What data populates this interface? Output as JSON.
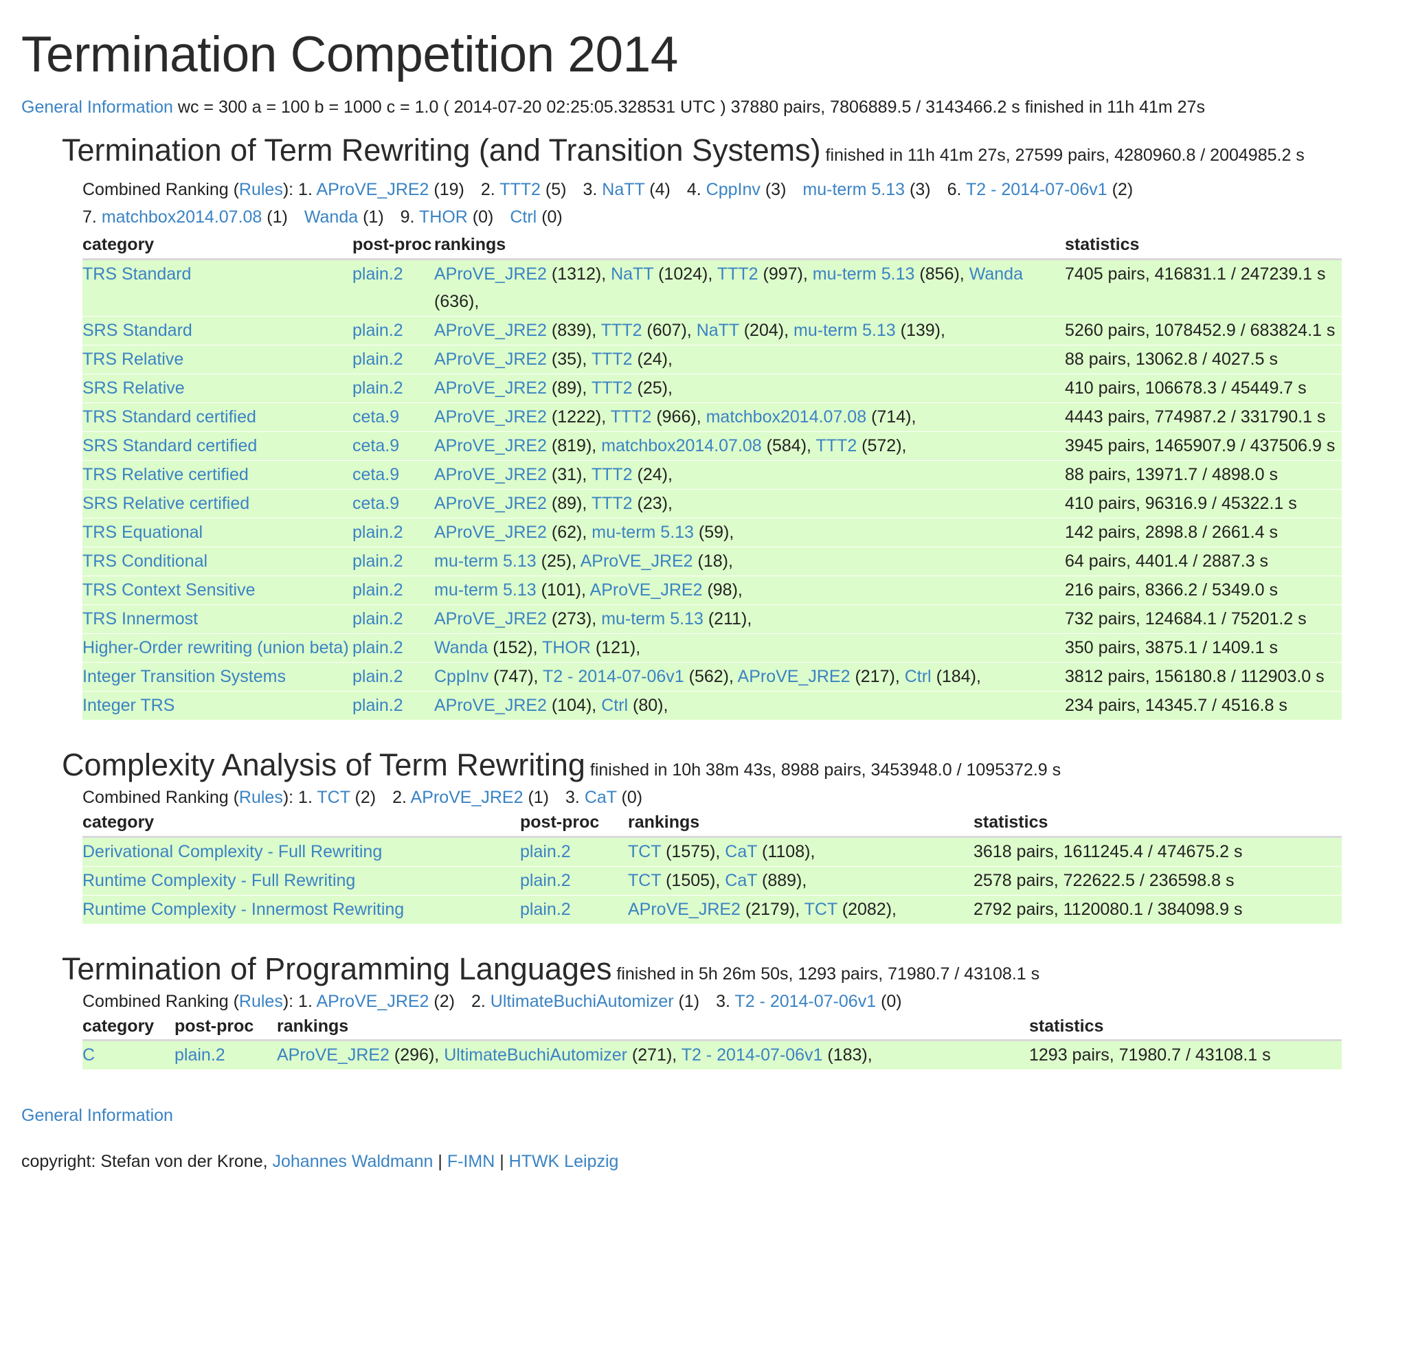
{
  "title": "Termination Competition 2014",
  "summary": {
    "link": "General Information",
    "text": " wc = 300 a = 100 b = 1000 c = 1.0 ( 2014-07-20 02:25:05.328531 UTC ) 37880 pairs, 7806889.5 / 3143466.2 s finished in 11h 41m 27s"
  },
  "sections": [
    {
      "title": "Termination of Term Rewriting (and Transition Systems)",
      "meta": " finished in 11h 41m 27s, 27599 pairs, 4280960.8 / 2004985.2 s",
      "ranking_prefix": "Combined Ranking (",
      "rules_label": "Rules",
      "ranking_suffix": "): ",
      "ranking": [
        {
          "place": "1.",
          "name": "AProVE_JRE2",
          "score": "(19)"
        },
        {
          "place": "2.",
          "name": "TTT2",
          "score": "(5)"
        },
        {
          "place": "3.",
          "name": "NaTT",
          "score": "(4)"
        },
        {
          "place": "4.",
          "name": "CppInv",
          "score": "(3)"
        },
        {
          "place": "",
          "name": "mu-term 5.13",
          "score": "(3)"
        },
        {
          "place": "6.",
          "name": "T2 - 2014-07-06v1",
          "score": "(2)"
        },
        {
          "place": "7.",
          "name": "matchbox2014.07.08",
          "score": "(1)"
        },
        {
          "place": "",
          "name": "Wanda",
          "score": "(1)"
        },
        {
          "place": "9.",
          "name": "THOR",
          "score": "(0)"
        },
        {
          "place": "",
          "name": "Ctrl",
          "score": "(0)"
        }
      ],
      "headers": [
        "category",
        "post-proc",
        "rankings",
        "statistics"
      ],
      "rows": [
        {
          "category": "TRS Standard",
          "post": "plain.2",
          "rankings": [
            [
              "AProVE_JRE2",
              "(1312)"
            ],
            [
              "NaTT",
              "(1024)"
            ],
            [
              "TTT2",
              "(997)"
            ],
            [
              "mu-term 5.13",
              "(856)"
            ],
            [
              "Wanda",
              "(636)"
            ]
          ],
          "stats": "7405 pairs, 416831.1 / 247239.1 s"
        },
        {
          "category": "SRS Standard",
          "post": "plain.2",
          "rankings": [
            [
              "AProVE_JRE2",
              "(839)"
            ],
            [
              "TTT2",
              "(607)"
            ],
            [
              "NaTT",
              "(204)"
            ],
            [
              "mu-term 5.13",
              "(139)"
            ]
          ],
          "stats": "5260 pairs, 1078452.9 / 683824.1 s"
        },
        {
          "category": "TRS Relative",
          "post": "plain.2",
          "rankings": [
            [
              "AProVE_JRE2",
              "(35)"
            ],
            [
              "TTT2",
              "(24)"
            ]
          ],
          "stats": "88 pairs, 13062.8 / 4027.5 s"
        },
        {
          "category": "SRS Relative",
          "post": "plain.2",
          "rankings": [
            [
              "AProVE_JRE2",
              "(89)"
            ],
            [
              "TTT2",
              "(25)"
            ]
          ],
          "stats": "410 pairs, 106678.3 / 45449.7 s"
        },
        {
          "category": "TRS Standard certified",
          "post": "ceta.9",
          "rankings": [
            [
              "AProVE_JRE2",
              "(1222)"
            ],
            [
              "TTT2",
              "(966)"
            ],
            [
              "matchbox2014.07.08",
              "(714)"
            ]
          ],
          "stats": "4443 pairs, 774987.2 / 331790.1 s"
        },
        {
          "category": "SRS Standard certified",
          "post": "ceta.9",
          "rankings": [
            [
              "AProVE_JRE2",
              "(819)"
            ],
            [
              "matchbox2014.07.08",
              "(584)"
            ],
            [
              "TTT2",
              "(572)"
            ]
          ],
          "stats": "3945 pairs, 1465907.9 / 437506.9 s"
        },
        {
          "category": "TRS Relative certified",
          "post": "ceta.9",
          "rankings": [
            [
              "AProVE_JRE2",
              "(31)"
            ],
            [
              "TTT2",
              "(24)"
            ]
          ],
          "stats": "88 pairs, 13971.7 / 4898.0 s"
        },
        {
          "category": "SRS Relative certified",
          "post": "ceta.9",
          "rankings": [
            [
              "AProVE_JRE2",
              "(89)"
            ],
            [
              "TTT2",
              "(23)"
            ]
          ],
          "stats": "410 pairs, 96316.9 / 45322.1 s"
        },
        {
          "category": "TRS Equational",
          "post": "plain.2",
          "rankings": [
            [
              "AProVE_JRE2",
              "(62)"
            ],
            [
              "mu-term 5.13",
              "(59)"
            ]
          ],
          "stats": "142 pairs, 2898.8 / 2661.4 s"
        },
        {
          "category": "TRS Conditional",
          "post": "plain.2",
          "rankings": [
            [
              "mu-term 5.13",
              "(25)"
            ],
            [
              "AProVE_JRE2",
              "(18)"
            ]
          ],
          "stats": "64 pairs, 4401.4 / 2887.3 s"
        },
        {
          "category": "TRS Context Sensitive",
          "post": "plain.2",
          "rankings": [
            [
              "mu-term 5.13",
              "(101)"
            ],
            [
              "AProVE_JRE2",
              "(98)"
            ]
          ],
          "stats": "216 pairs, 8366.2 / 5349.0 s"
        },
        {
          "category": "TRS Innermost",
          "post": "plain.2",
          "rankings": [
            [
              "AProVE_JRE2",
              "(273)"
            ],
            [
              "mu-term 5.13",
              "(211)"
            ]
          ],
          "stats": "732 pairs, 124684.1 / 75201.2 s"
        },
        {
          "category": "Higher-Order rewriting (union beta)",
          "post": "plain.2",
          "rankings": [
            [
              "Wanda",
              "(152)"
            ],
            [
              "THOR",
              "(121)"
            ]
          ],
          "stats": "350 pairs, 3875.1 / 1409.1 s"
        },
        {
          "category": "Integer Transition Systems",
          "post": "plain.2",
          "rankings": [
            [
              "CppInv",
              "(747)"
            ],
            [
              "T2 - 2014-07-06v1",
              "(562)"
            ],
            [
              "AProVE_JRE2",
              "(217)"
            ],
            [
              "Ctrl",
              "(184)"
            ]
          ],
          "stats": "3812 pairs, 156180.8 / 112903.0 s"
        },
        {
          "category": "Integer TRS",
          "post": "plain.2",
          "rankings": [
            [
              "AProVE_JRE2",
              "(104)"
            ],
            [
              "Ctrl",
              "(80)"
            ]
          ],
          "stats": "234 pairs, 14345.7 / 4516.8 s"
        }
      ]
    },
    {
      "title": "Complexity Analysis of Term Rewriting",
      "meta": " finished in 10h 38m 43s, 8988 pairs, 3453948.0 / 1095372.9 s",
      "ranking_prefix": "Combined Ranking (",
      "rules_label": "Rules",
      "ranking_suffix": "): ",
      "ranking": [
        {
          "place": "1.",
          "name": "TCT",
          "score": "(2)"
        },
        {
          "place": "2.",
          "name": "AProVE_JRE2",
          "score": "(1)"
        },
        {
          "place": "3.",
          "name": "CaT",
          "score": "(0)"
        }
      ],
      "headers": [
        "category",
        "post-proc",
        "rankings",
        "statistics"
      ],
      "rows": [
        {
          "category": "Derivational Complexity - Full Rewriting",
          "post": "plain.2",
          "rankings": [
            [
              "TCT",
              "(1575)"
            ],
            [
              "CaT",
              "(1108)"
            ]
          ],
          "stats": "3618 pairs, 1611245.4 / 474675.2 s"
        },
        {
          "category": "Runtime Complexity - Full Rewriting",
          "post": "plain.2",
          "rankings": [
            [
              "TCT",
              "(1505)"
            ],
            [
              "CaT",
              "(889)"
            ]
          ],
          "stats": "2578 pairs, 722622.5 / 236598.8 s"
        },
        {
          "category": "Runtime Complexity - Innermost Rewriting",
          "post": "plain.2",
          "rankings": [
            [
              "AProVE_JRE2",
              "(2179)"
            ],
            [
              "TCT",
              "(2082)"
            ]
          ],
          "stats": "2792 pairs, 1120080.1 / 384098.9 s"
        }
      ]
    },
    {
      "title": "Termination of Programming Languages",
      "meta": " finished in 5h 26m 50s, 1293 pairs, 71980.7 / 43108.1 s",
      "ranking_prefix": "Combined Ranking (",
      "rules_label": "Rules",
      "ranking_suffix": "): ",
      "ranking": [
        {
          "place": "1.",
          "name": "AProVE_JRE2",
          "score": "(2)"
        },
        {
          "place": "2.",
          "name": "UltimateBuchiAutomizer",
          "score": "(1)"
        },
        {
          "place": "3.",
          "name": "T2 - 2014-07-06v1",
          "score": "(0)"
        }
      ],
      "headers": [
        "category",
        "post-proc",
        "rankings",
        "statistics"
      ],
      "rows": [
        {
          "category": "C",
          "post": "plain.2",
          "rankings": [
            [
              "AProVE_JRE2",
              "(296)"
            ],
            [
              "UltimateBuchiAutomizer",
              "(271)"
            ],
            [
              "T2 - 2014-07-06v1",
              "(183)"
            ]
          ],
          "stats": "1293 pairs, 71980.7 / 43108.1 s"
        }
      ]
    }
  ],
  "footer": {
    "general_info": "General Information",
    "copyright_text": "copyright: Stefan von der Krone, ",
    "links": [
      "Johannes Waldmann",
      "F-IMN",
      "HTWK Leipzig"
    ],
    "separator": " | "
  }
}
